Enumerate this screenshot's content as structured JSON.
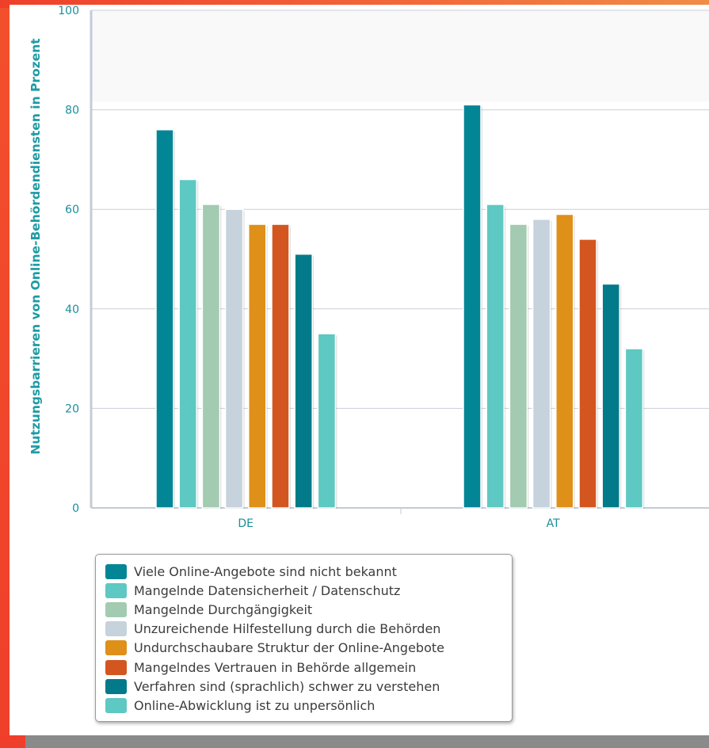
{
  "chart_data": {
    "type": "bar",
    "ylabel": "Nutzungsbarrieren von Online-Behördendiensten in Prozent",
    "ylim": [
      0,
      100
    ],
    "yticks": [
      0,
      20,
      40,
      60,
      80,
      100
    ],
    "categories": [
      "DE",
      "AT"
    ],
    "grid": true,
    "legend_position": "bottom-left",
    "series": [
      {
        "name": "Viele Online-Angebote sind nicht bekannt",
        "color": "#028696",
        "values": [
          76,
          81
        ]
      },
      {
        "name": "Mangelnde Datensicherheit / Datenschutz",
        "color": "#5ec8c2",
        "values": [
          66,
          61
        ]
      },
      {
        "name": "Mangelnde Durchgängigkeit",
        "color": "#a2cbb1",
        "values": [
          61,
          57
        ]
      },
      {
        "name": "Unzureichende Hilfestellung durch die Behörden",
        "color": "#c6d2dc",
        "values": [
          60,
          58
        ]
      },
      {
        "name": "Undurchschaubare Struktur der Online-Angebote",
        "color": "#de9019",
        "values": [
          57,
          59
        ]
      },
      {
        "name": "Mangelndes Vertrauen in Behörde allgemein",
        "color": "#d35620",
        "values": [
          57,
          54
        ]
      },
      {
        "name": "Verfahren sind (sprachlich) schwer zu verstehen",
        "color": "#037a89",
        "values": [
          51,
          45
        ]
      },
      {
        "name": "Online-Abwicklung ist zu unpersönlich",
        "color": "#5ec8c2",
        "values": [
          35,
          32
        ]
      }
    ]
  }
}
